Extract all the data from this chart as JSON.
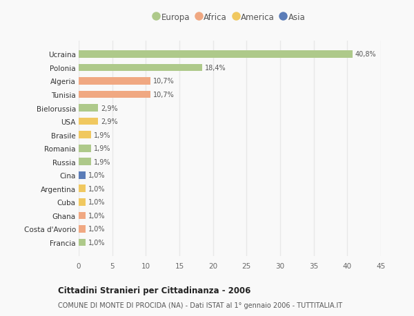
{
  "countries": [
    "Ucraina",
    "Polonia",
    "Algeria",
    "Tunisia",
    "Bielorussia",
    "USA",
    "Brasile",
    "Romania",
    "Russia",
    "Cina",
    "Argentina",
    "Cuba",
    "Ghana",
    "Costa d'Avorio",
    "Francia"
  ],
  "values": [
    40.8,
    18.4,
    10.7,
    10.7,
    2.9,
    2.9,
    1.9,
    1.9,
    1.9,
    1.0,
    1.0,
    1.0,
    1.0,
    1.0,
    1.0
  ],
  "labels": [
    "40,8%",
    "18,4%",
    "10,7%",
    "10,7%",
    "2,9%",
    "2,9%",
    "1,9%",
    "1,9%",
    "1,9%",
    "1,0%",
    "1,0%",
    "1,0%",
    "1,0%",
    "1,0%",
    "1,0%"
  ],
  "continents": [
    "Europa",
    "Europa",
    "Africa",
    "Africa",
    "Europa",
    "America",
    "America",
    "Europa",
    "Europa",
    "Asia",
    "America",
    "America",
    "Africa",
    "Africa",
    "Europa"
  ],
  "continent_colors": {
    "Europa": "#aec98a",
    "Africa": "#f0a882",
    "America": "#f0c860",
    "Asia": "#5b7db8"
  },
  "legend_order": [
    "Europa",
    "Africa",
    "America",
    "Asia"
  ],
  "title_main": "Cittadini Stranieri per Cittadinanza - 2006",
  "title_sub": "COMUNE DI MONTE DI PROCIDA (NA) - Dati ISTAT al 1° gennaio 2006 - TUTTITALIA.IT",
  "xlim": [
    0,
    45
  ],
  "xticks": [
    0,
    5,
    10,
    15,
    20,
    25,
    30,
    35,
    40,
    45
  ],
  "background_color": "#f9f9f9",
  "grid_color": "#e8e8e8",
  "bar_height": 0.55
}
